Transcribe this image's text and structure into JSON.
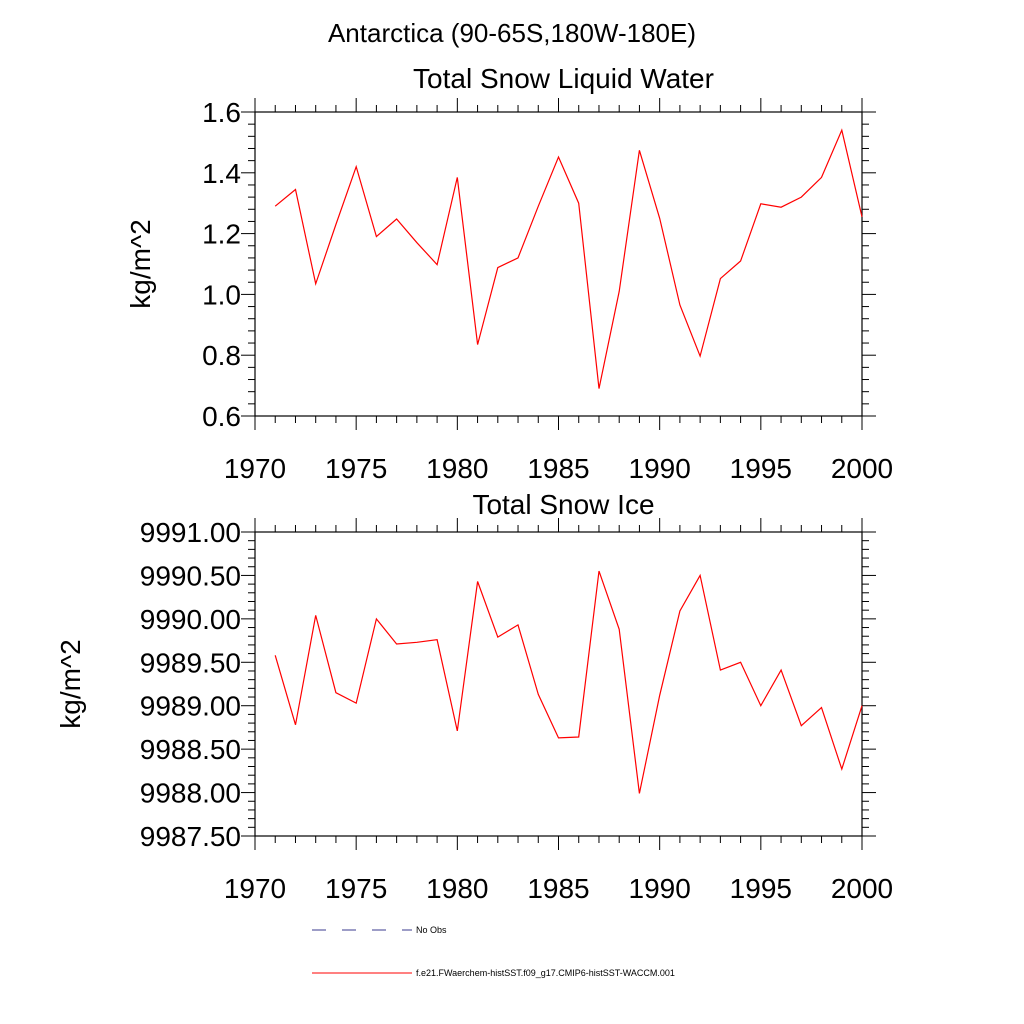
{
  "page_title": "Antarctica (90-65S,180W-180E)",
  "chart_data": [
    {
      "type": "line",
      "title": "Total Snow Liquid Water",
      "ylabel": "kg/m^2",
      "xlabel": "",
      "xlim": [
        1970,
        2000
      ],
      "ylim": [
        0.6,
        1.6
      ],
      "xticks": [
        "1970",
        "1975",
        "1980",
        "1985",
        "1990",
        "1995",
        "2000"
      ],
      "yticks": [
        "0.6",
        "0.8",
        "1.0",
        "1.2",
        "1.4",
        "1.6"
      ],
      "x": [
        1971,
        1972,
        1973,
        1974,
        1975,
        1976,
        1977,
        1978,
        1979,
        1980,
        1981,
        1982,
        1983,
        1984,
        1985,
        1986,
        1987,
        1988,
        1989,
        1990,
        1991,
        1992,
        1993,
        1994,
        1995,
        1996,
        1997,
        1998,
        1999,
        2000
      ],
      "series": [
        {
          "name": "f.e21.FWaerchem-histSST.f09_g17.CMIP6-histSST-WACCM.001",
          "color": "#ff0000",
          "values": [
            1.29,
            1.345,
            1.035,
            1.23,
            1.42,
            1.19,
            1.248,
            1.17,
            1.098,
            1.385,
            0.835,
            1.088,
            1.12,
            1.29,
            1.452,
            1.3,
            0.69,
            1.01,
            1.474,
            1.25,
            0.965,
            0.797,
            1.052,
            1.11,
            1.298,
            1.287,
            1.32,
            1.385,
            1.54,
            1.255
          ]
        }
      ]
    },
    {
      "type": "line",
      "title": "Total Snow Ice",
      "ylabel": "kg/m^2",
      "xlabel": "",
      "xlim": [
        1970,
        2000
      ],
      "ylim": [
        9987.5,
        9991.0
      ],
      "xticks": [
        "1970",
        "1975",
        "1980",
        "1985",
        "1990",
        "1995",
        "2000"
      ],
      "yticks": [
        "9987.50",
        "9988.00",
        "9988.50",
        "9989.00",
        "9989.50",
        "9990.00",
        "9990.50",
        "9991.00"
      ],
      "x": [
        1971,
        1972,
        1973,
        1974,
        1975,
        1976,
        1977,
        1978,
        1979,
        1980,
        1981,
        1982,
        1983,
        1984,
        1985,
        1986,
        1987,
        1988,
        1989,
        1990,
        1991,
        1992,
        1993,
        1994,
        1995,
        1996,
        1997,
        1998,
        1999,
        2000
      ],
      "series": [
        {
          "name": "f.e21.FWaerchem-histSST.f09_g17.CMIP6-histSST-WACCM.001",
          "color": "#ff0000",
          "values": [
            9989.58,
            9988.78,
            9990.04,
            9989.15,
            9989.03,
            9990.0,
            9989.71,
            9989.73,
            9989.76,
            9988.71,
            9990.43,
            9989.79,
            9989.93,
            9989.13,
            9988.63,
            9988.64,
            9990.55,
            9989.88,
            9987.99,
            9989.12,
            9990.09,
            9990.5,
            9989.41,
            9989.5,
            9989.0,
            9989.41,
            9988.77,
            9988.98,
            9988.27,
            9989.0
          ]
        }
      ]
    }
  ],
  "legend": [
    {
      "label": "No Obs",
      "style": "dashed",
      "color": "#3b3b8f"
    },
    {
      "label": "f.e21.FWaerchem-histSST.f09_g17.CMIP6-histSST-WACCM.001",
      "style": "solid",
      "color": "#ff0000"
    }
  ]
}
